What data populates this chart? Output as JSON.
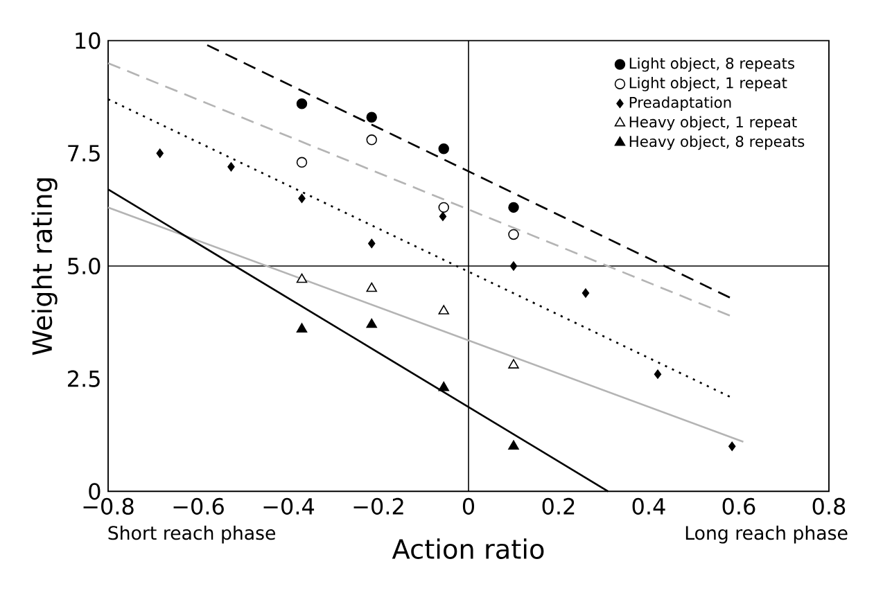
{
  "chart_data": {
    "type": "scatter",
    "xlabel": "Action ratio",
    "ylabel": "Weight rating",
    "xlim": [
      -0.8,
      0.8
    ],
    "ylim": [
      0,
      10
    ],
    "xticks": [
      {
        "value": -0.8,
        "label": "−0.8"
      },
      {
        "value": -0.6,
        "label": "−0.6"
      },
      {
        "value": -0.4,
        "label": "−0.4"
      },
      {
        "value": -0.2,
        "label": "−0.2"
      },
      0,
      0.2,
      0.4,
      0.6,
      0.8
    ],
    "yticks": [
      0,
      2.5,
      {
        "value": 5,
        "label": "5.0"
      },
      7.5,
      10
    ],
    "grid": false,
    "legend": "top right",
    "series": [
      {
        "name": "Light object, 8 repeats",
        "marker": "circle",
        "color": "#000000",
        "x": [
          -0.37,
          -0.215,
          -0.055,
          0.1
        ],
        "values": [
          8.6,
          8.3,
          7.6,
          6.3
        ]
      },
      {
        "name": "Light object, 1 repeat",
        "marker": "circle",
        "color": "#ffffff",
        "x": [
          -0.37,
          -0.215,
          -0.055,
          0.1
        ],
        "values": [
          7.3,
          7.8,
          6.3,
          5.7
        ]
      },
      {
        "name": "Preadaptation",
        "marker": "diamond",
        "color": "#000000",
        "x": [
          -0.685,
          -0.527,
          -0.37,
          -0.215,
          -0.057,
          0.1,
          0.26,
          0.42,
          0.585
        ],
        "values": [
          7.5,
          7.2,
          6.5,
          5.5,
          6.1,
          5.0,
          4.4,
          2.6,
          1.0
        ]
      },
      {
        "name": "Heavy object, 1 repeat",
        "marker": "triangle",
        "color": "#ffffff",
        "x": [
          -0.37,
          -0.215,
          -0.055,
          0.1
        ],
        "values": [
          4.7,
          4.5,
          4.0,
          2.8
        ]
      },
      {
        "name": "Heavy object, 8 repeats",
        "marker": "triangle",
        "color": "#000000",
        "x": [
          -0.37,
          -0.215,
          -0.055,
          0.1
        ],
        "values": [
          3.6,
          3.7,
          2.3,
          1.0
        ]
      },
      {
        "type": "line",
        "color": "#000000",
        "line_style": "dashed",
        "x": [
          -0.58,
          0.58
        ],
        "values": [
          9.9,
          4.3
        ]
      },
      {
        "type": "line",
        "color": "#b4b4b4",
        "line_style": "dashed",
        "x": [
          -0.8,
          0.58
        ],
        "values": [
          9.5,
          3.9
        ]
      },
      {
        "type": "line",
        "color": "#000000",
        "line_style": "dotted",
        "x": [
          -0.8,
          0.58
        ],
        "values": [
          8.7,
          2.1
        ]
      },
      {
        "type": "line",
        "color": "#b4b4b4",
        "line_style": "solid",
        "x": [
          -0.8,
          0.61
        ],
        "values": [
          6.3,
          1.1
        ]
      },
      {
        "type": "line",
        "color": "#000000",
        "line_style": "solid",
        "x": [
          -0.8,
          0.31
        ],
        "values": [
          6.7,
          0
        ]
      }
    ],
    "ref_lines": [
      {
        "axis": "x",
        "value": 0,
        "color": "#000000"
      },
      {
        "axis": "y",
        "value": 5,
        "color": "#000000"
      }
    ],
    "annotations": [
      "Short reach phase",
      "Long reach phase"
    ]
  }
}
